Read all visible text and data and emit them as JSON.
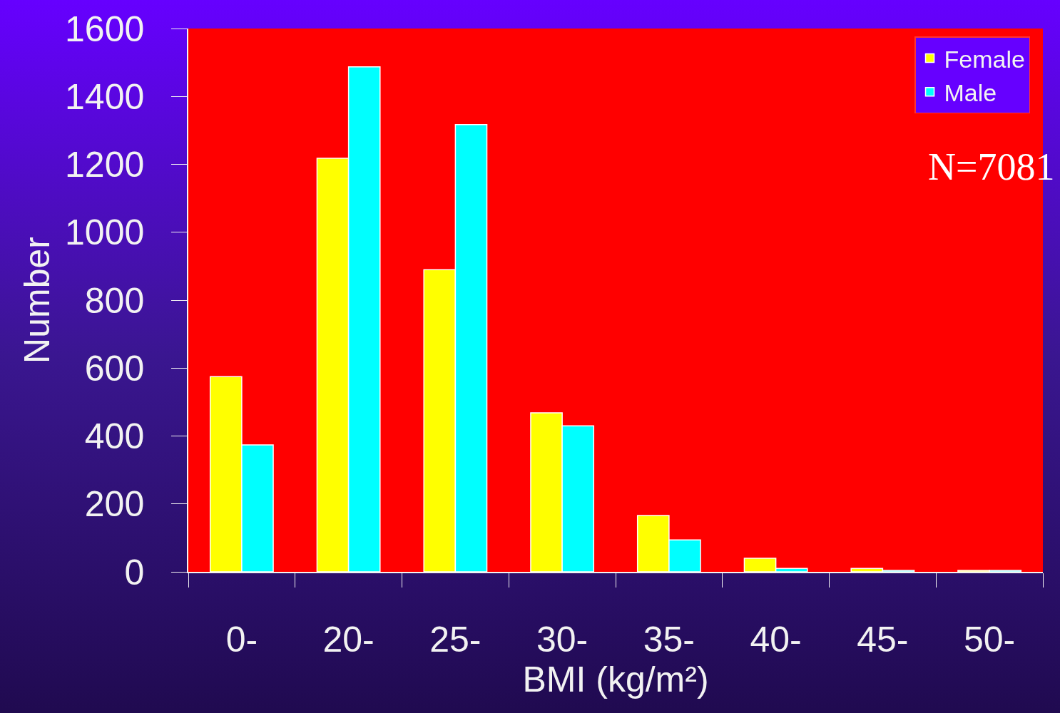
{
  "chart_data": {
    "type": "bar",
    "xlabel": "BMI (kg/m²)",
    "ylabel": "Number",
    "categories": [
      "0-",
      "20-",
      "25-",
      "30-",
      "35-",
      "40-",
      "45-",
      "50-"
    ],
    "series": [
      {
        "name": "Female",
        "color": "#ffff00",
        "values": [
          575,
          1218,
          890,
          468,
          166,
          40,
          10,
          4
        ]
      },
      {
        "name": "Male",
        "color": "#00ffff",
        "values": [
          374,
          1487,
          1317,
          430,
          94,
          10,
          4,
          4
        ]
      }
    ],
    "ylim": [
      0,
      1600
    ],
    "yticks": [
      0,
      200,
      400,
      600,
      800,
      1000,
      1200,
      1400,
      1600
    ],
    "grid": false,
    "legend": "top right",
    "annotations": [
      "N=7081"
    ]
  }
}
